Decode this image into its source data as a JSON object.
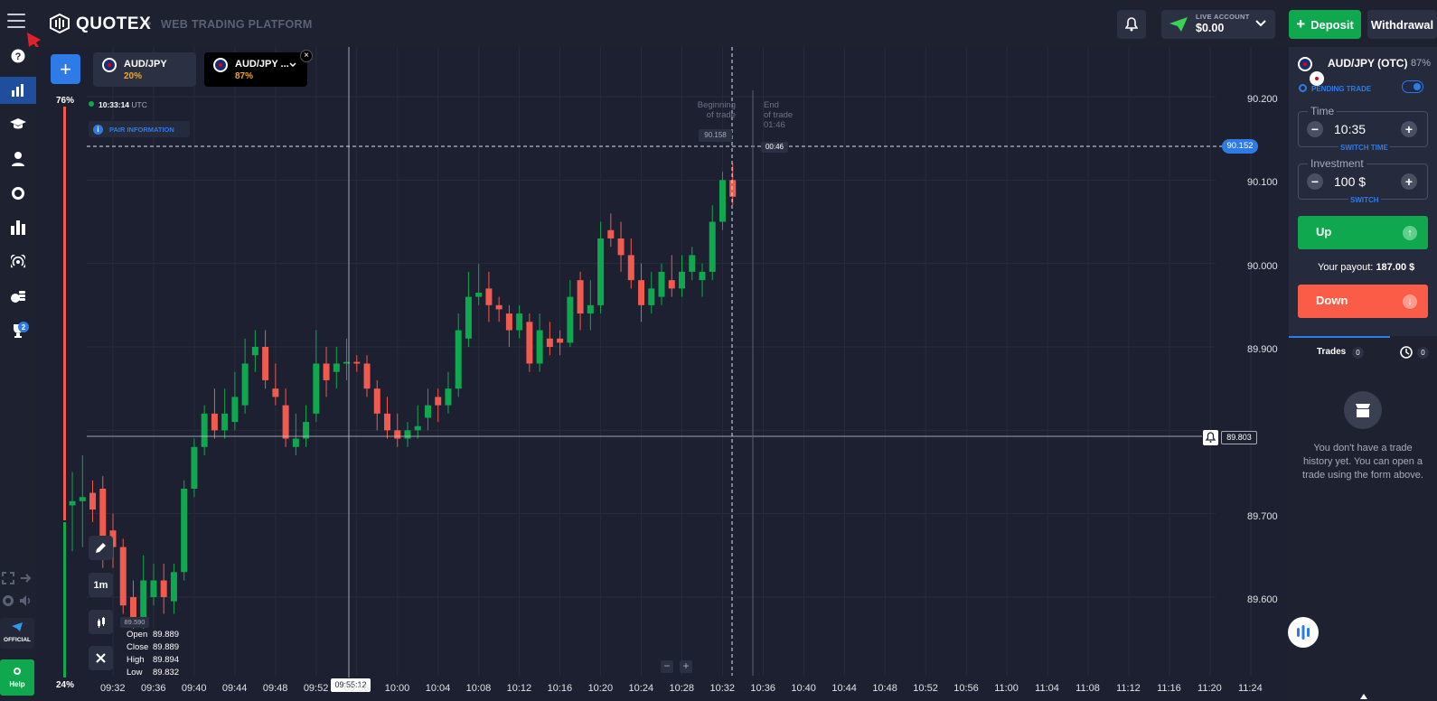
{
  "header": {
    "brand": "QUOTEX",
    "platform": "WEB TRADING PLATFORM",
    "account_label": "LIVE ACCOUNT",
    "balance": "$0.00",
    "deposit_label": "Deposit",
    "withdraw_label": "Withdrawal"
  },
  "tabs": [
    {
      "pair": "AUD/JPY",
      "payout": "20%"
    },
    {
      "pair": "AUD/JPY ...",
      "payout": "87%"
    }
  ],
  "sidebar": {
    "trophy_badge": "2",
    "official_label": "OFFICIAL",
    "help_label": "Help"
  },
  "chart": {
    "server_time": "10:33:14",
    "timezone": "UTC",
    "pair_info_label": "PAIR INFORMATION",
    "sentiment_up": "76%",
    "sentiment_down": "24%",
    "timeframe": "1m",
    "beginning_label_1": "Beginning",
    "beginning_label_2": "of trade",
    "beginning_price": "90.158",
    "end_label_1": "End",
    "end_label_2": "of trade",
    "end_time": "01:46",
    "countdown": "00:46",
    "current_price": "90.152",
    "alert_price": "89.803",
    "low_marker": "89.590",
    "crosshair_time": "09:55:12",
    "ohlc": {
      "open_label": "Open",
      "open": "89.889",
      "close_label": "Close",
      "close": "89.889",
      "high_label": "High",
      "high": "89.894",
      "low_label": "Low",
      "low": "89.832"
    },
    "y_ticks": [
      "90.200",
      "90.100",
      "90.000",
      "89.900",
      "89.800",
      "89.700",
      "89.600"
    ],
    "x_ticks": [
      "09:32",
      "09:36",
      "09:40",
      "09:44",
      "09:48",
      "09:52",
      "09:56",
      "10:00",
      "10:04",
      "10:08",
      "10:12",
      "10:16",
      "10:20",
      "10:24",
      "10:28",
      "10:32",
      "10:36",
      "10:40",
      "10:44",
      "10:48",
      "10:52",
      "10:56",
      "11:00",
      "11:04",
      "11:08",
      "11:12",
      "11:16",
      "11:20",
      "11:24"
    ],
    "zoom_minus": "−",
    "zoom_plus": "+"
  },
  "chart_data": {
    "type": "candlestick",
    "y_range": [
      89.55,
      90.25
    ],
    "colors": {
      "up": "#0fa84f",
      "down": "#f05a4f"
    },
    "candles": [
      [
        89.71,
        89.715,
        89.75,
        89.655
      ],
      [
        89.715,
        89.72,
        89.77,
        89.66
      ],
      [
        89.725,
        89.705,
        89.74,
        89.69
      ],
      [
        89.73,
        89.66,
        89.745,
        89.635
      ],
      [
        89.68,
        89.66,
        89.7,
        89.635
      ],
      [
        89.66,
        89.59,
        89.67,
        89.58
      ],
      [
        89.6,
        89.575,
        89.62,
        89.56
      ],
      [
        89.575,
        89.62,
        89.65,
        89.56
      ],
      [
        89.6,
        89.62,
        89.64,
        89.59
      ],
      [
        89.62,
        89.6,
        89.64,
        89.58
      ],
      [
        89.595,
        89.63,
        89.64,
        89.58
      ],
      [
        89.63,
        89.73,
        89.74,
        89.62
      ],
      [
        89.73,
        89.78,
        89.79,
        89.72
      ],
      [
        89.78,
        89.82,
        89.83,
        89.77
      ],
      [
        89.82,
        89.8,
        89.85,
        89.79
      ],
      [
        89.8,
        89.82,
        89.85,
        89.79
      ],
      [
        89.81,
        89.84,
        89.87,
        89.8
      ],
      [
        89.83,
        89.88,
        89.91,
        89.82
      ],
      [
        89.89,
        89.9,
        89.92,
        89.87
      ],
      [
        89.9,
        89.86,
        89.92,
        89.85
      ],
      [
        89.85,
        89.84,
        89.88,
        89.83
      ],
      [
        89.83,
        89.79,
        89.85,
        89.78
      ],
      [
        89.78,
        89.79,
        89.82,
        89.77
      ],
      [
        89.79,
        89.81,
        89.83,
        89.78
      ],
      [
        89.82,
        89.88,
        89.92,
        89.81
      ],
      [
        89.88,
        89.86,
        89.9,
        89.84
      ],
      [
        89.87,
        89.88,
        89.9,
        89.85
      ],
      [
        89.88,
        89.882,
        89.91,
        89.86
      ],
      [
        89.882,
        89.88,
        89.89,
        89.87
      ],
      [
        89.88,
        89.85,
        89.89,
        89.84
      ],
      [
        89.85,
        89.82,
        89.86,
        89.8
      ],
      [
        89.82,
        89.8,
        89.84,
        89.79
      ],
      [
        89.8,
        89.79,
        89.82,
        89.78
      ],
      [
        89.79,
        89.8,
        89.81,
        89.78
      ],
      [
        89.8,
        89.805,
        89.83,
        89.79
      ],
      [
        89.815,
        89.83,
        89.85,
        89.8
      ],
      [
        89.84,
        89.83,
        89.85,
        89.81
      ],
      [
        89.83,
        89.85,
        89.87,
        89.82
      ],
      [
        89.85,
        89.92,
        89.94,
        89.84
      ],
      [
        89.91,
        89.96,
        89.99,
        89.9
      ],
      [
        89.96,
        89.965,
        90.0,
        89.95
      ],
      [
        89.97,
        89.95,
        89.99,
        89.93
      ],
      [
        89.95,
        89.945,
        89.96,
        89.93
      ],
      [
        89.94,
        89.92,
        89.95,
        89.9
      ],
      [
        89.92,
        89.94,
        89.95,
        89.91
      ],
      [
        89.93,
        89.88,
        89.94,
        89.87
      ],
      [
        89.88,
        89.92,
        89.94,
        89.87
      ],
      [
        89.91,
        89.9,
        89.93,
        89.89
      ],
      [
        89.91,
        89.905,
        89.92,
        89.89
      ],
      [
        89.905,
        89.96,
        89.98,
        89.9
      ],
      [
        89.98,
        89.94,
        89.99,
        89.92
      ],
      [
        89.94,
        89.95,
        89.98,
        89.92
      ],
      [
        89.95,
        90.03,
        90.05,
        89.94
      ],
      [
        90.04,
        90.03,
        90.06,
        90.02
      ],
      [
        90.03,
        90.01,
        90.05,
        89.99
      ],
      [
        90.01,
        89.98,
        90.03,
        89.97
      ],
      [
        89.98,
        89.95,
        90.0,
        89.93
      ],
      [
        89.95,
        89.97,
        89.99,
        89.94
      ],
      [
        89.96,
        89.99,
        90.0,
        89.95
      ],
      [
        89.98,
        89.97,
        90.01,
        89.96
      ],
      [
        89.97,
        89.99,
        90.01,
        89.96
      ],
      [
        89.99,
        90.01,
        90.02,
        89.98
      ],
      [
        89.98,
        89.99,
        90.0,
        89.96
      ],
      [
        89.99,
        90.05,
        90.07,
        89.98
      ],
      [
        90.05,
        90.1,
        90.11,
        90.04
      ],
      [
        90.1,
        90.08,
        90.12,
        90.07
      ]
    ]
  },
  "trade_panel": {
    "pair": "AUD/JPY (OTC)",
    "payout": "87%",
    "pending_label": "PENDING TRADE",
    "time_label": "Time",
    "time_value": "10:35",
    "switch_time": "SWITCH TIME",
    "investment_label": "Investment",
    "investment_value": "100 $",
    "switch": "SWITCH",
    "up_label": "Up",
    "down_label": "Down",
    "payout_label": "Your payout:",
    "payout_value": "187.00 $",
    "trades_label": "Trades",
    "trades_count": "0",
    "pending_count": "0",
    "empty_text_1": "You don't have a trade",
    "empty_text_2": "history yet. You can open a",
    "empty_text_3": "trade using the form above."
  }
}
